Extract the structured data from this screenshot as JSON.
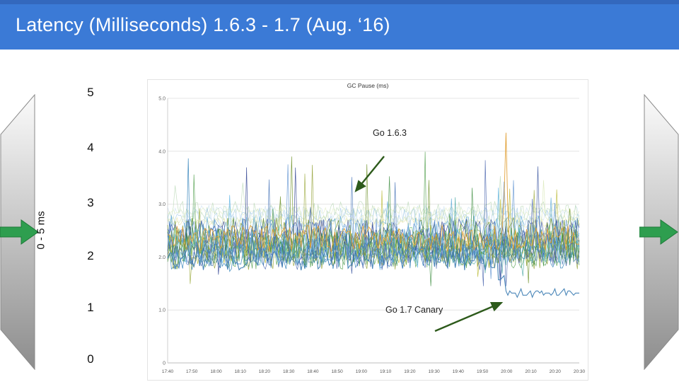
{
  "header": {
    "title": "Latency (Milliseconds) 1.6.3 - 1.7 (Aug. ‘16)",
    "background": "#3b7ad6",
    "top_strip": "#3368bd"
  },
  "slide": {
    "axis_label": "0 - 5 ms",
    "scale_values": [
      "5",
      "4",
      "3",
      "2",
      "1",
      "0"
    ],
    "arrow_color": "#2e9e4f",
    "arrow_stroke": "#1d7a38",
    "panel_top_color": "#fbfbfb",
    "panel_bottom_color": "#8d8d8d"
  },
  "chart_data": {
    "type": "line",
    "title": "GC Pause (ms)",
    "xlabel": "",
    "ylabel": "",
    "ylim": [
      0,
      5
    ],
    "grid": true,
    "y_ticks": [
      "5.0",
      "4.0",
      "3.0",
      "2.0",
      "1.0",
      "0"
    ],
    "y_tick_values": [
      5,
      4,
      3,
      2,
      1,
      0
    ],
    "x_ticks": [
      "17:40",
      "17:50",
      "18:00",
      "18:10",
      "18:20",
      "18:30",
      "18:40",
      "18:50",
      "19:00",
      "19:10",
      "19:20",
      "19:30",
      "19:40",
      "19:50",
      "20:00",
      "20:10",
      "20:20",
      "20:30"
    ],
    "annotations": [
      {
        "label": "Go 1.6.3",
        "meaning": "cluster of noisy Go 1.6.3 GC pause series fluctuating ~1.7-3.2 ms"
      },
      {
        "label": "Go 1.7 Canary",
        "meaning": "single canary series that drops from ~2.0 ms to ~1.3 ms around 20:00"
      }
    ],
    "series_model": {
      "seed": 1337,
      "points": 220,
      "value_clamp": [
        1.45,
        4.0
      ],
      "groups": [
        {
          "count": 6,
          "base_range": [
            2.6,
            2.95
          ],
          "amp_range": [
            0.15,
            0.4
          ],
          "spike_chance": 0.004,
          "colors": [
            "#e8e3a8",
            "#cfe3f2",
            "#bddbba",
            "#e4efc9",
            "#a8cde8",
            "#d9e7b8"
          ]
        },
        {
          "count": 16,
          "base_range": [
            1.95,
            2.5
          ],
          "amp_range": [
            0.45,
            0.85
          ],
          "spike_chance": 0.012,
          "colors": [
            "#3f6fb5",
            "#4d9e49",
            "#b8b833",
            "#2c3e8f",
            "#58a8d6",
            "#6b8e23",
            "#1f77b4",
            "#74c476",
            "#8f9e2f",
            "#34509e",
            "#49a7a2",
            "#5b8fd0",
            "#3e8e41",
            "#9aa83a",
            "#4663ad",
            "#57b0e3"
          ]
        }
      ]
    },
    "highlight_spike_series": {
      "color": "#e2a33c",
      "base": 2.35,
      "amp": 0.5,
      "spike_x_frac": 0.82,
      "spike_value": 4.35
    },
    "canary_series": {
      "color": "#4a86b8",
      "level_before": 2.0,
      "noise_before": 0.5,
      "drop_x_frac": 0.8,
      "level_after": 1.32,
      "noise_after": 0.14
    }
  }
}
